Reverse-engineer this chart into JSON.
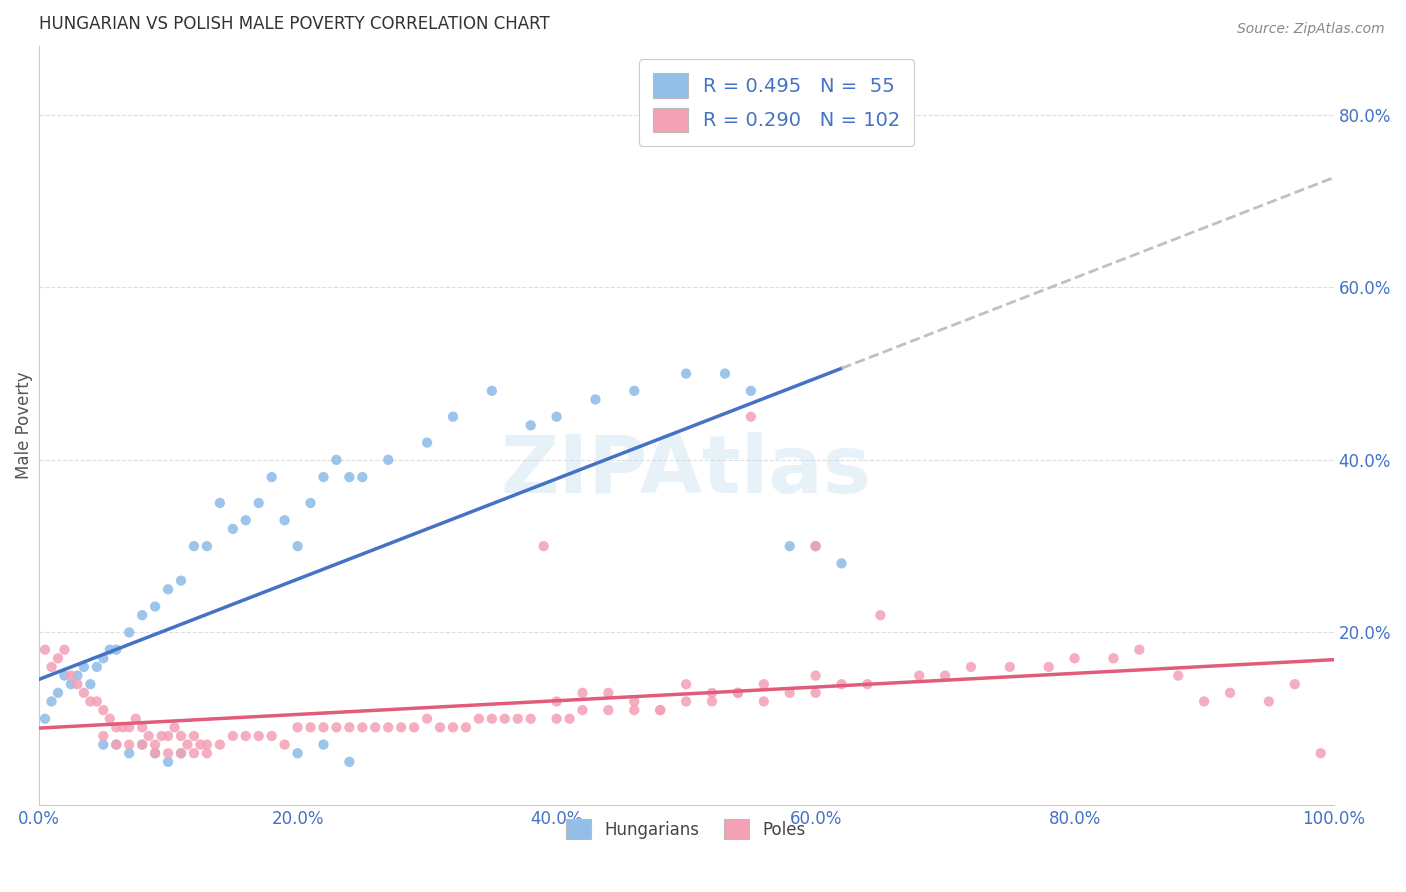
{
  "title": "HUNGARIAN VS POLISH MALE POVERTY CORRELATION CHART",
  "source": "Source: ZipAtlas.com",
  "ylabel": "Male Poverty",
  "xlim": [
    0,
    1.0
  ],
  "ylim": [
    0.0,
    0.88
  ],
  "x_tick_labels": [
    "0.0%",
    "20.0%",
    "40.0%",
    "60.0%",
    "80.0%",
    "100.0%"
  ],
  "y_tick_labels_right": [
    "",
    "20.0%",
    "40.0%",
    "60.0%",
    "80.0%"
  ],
  "hungarian_color": "#92BEE8",
  "polish_color": "#F4A0B5",
  "trendline_hungarian_color": "#4472C4",
  "trendline_polish_color": "#E05C7A",
  "trendline_extension_color": "#C0C0C0",
  "legend_label_hungarian": "Hungarians",
  "legend_label_polish": "Poles",
  "R_hungarian": 0.495,
  "N_hungarian": 55,
  "R_polish": 0.29,
  "N_polish": 102,
  "watermark": "ZIPAtlas",
  "background_color": "#FFFFFF",
  "grid_color": "#DDDDDD",
  "hungarian_x": [
    0.005,
    0.01,
    0.015,
    0.02,
    0.025,
    0.03,
    0.035,
    0.04,
    0.045,
    0.05,
    0.055,
    0.06,
    0.07,
    0.08,
    0.09,
    0.1,
    0.11,
    0.12,
    0.13,
    0.14,
    0.15,
    0.16,
    0.17,
    0.18,
    0.19,
    0.2,
    0.21,
    0.22,
    0.23,
    0.24,
    0.25,
    0.27,
    0.3,
    0.32,
    0.35,
    0.38,
    0.4,
    0.43,
    0.46,
    0.5,
    0.53,
    0.55,
    0.58,
    0.6,
    0.62,
    0.2,
    0.22,
    0.24,
    0.05,
    0.06,
    0.07,
    0.08,
    0.09,
    0.1,
    0.11
  ],
  "hungarian_y": [
    0.1,
    0.12,
    0.13,
    0.15,
    0.14,
    0.15,
    0.16,
    0.14,
    0.16,
    0.17,
    0.18,
    0.18,
    0.2,
    0.22,
    0.23,
    0.25,
    0.26,
    0.3,
    0.3,
    0.35,
    0.32,
    0.33,
    0.35,
    0.38,
    0.33,
    0.3,
    0.35,
    0.38,
    0.4,
    0.38,
    0.38,
    0.4,
    0.42,
    0.45,
    0.48,
    0.44,
    0.45,
    0.47,
    0.48,
    0.5,
    0.5,
    0.48,
    0.3,
    0.3,
    0.28,
    0.06,
    0.07,
    0.05,
    0.07,
    0.07,
    0.06,
    0.07,
    0.06,
    0.05,
    0.06
  ],
  "polish_x": [
    0.005,
    0.01,
    0.015,
    0.02,
    0.025,
    0.03,
    0.035,
    0.04,
    0.045,
    0.05,
    0.055,
    0.06,
    0.065,
    0.07,
    0.075,
    0.08,
    0.085,
    0.09,
    0.095,
    0.1,
    0.105,
    0.11,
    0.115,
    0.12,
    0.125,
    0.13,
    0.14,
    0.15,
    0.16,
    0.17,
    0.18,
    0.19,
    0.2,
    0.21,
    0.22,
    0.23,
    0.24,
    0.25,
    0.26,
    0.27,
    0.28,
    0.29,
    0.3,
    0.31,
    0.32,
    0.33,
    0.34,
    0.35,
    0.36,
    0.37,
    0.38,
    0.39,
    0.4,
    0.41,
    0.42,
    0.44,
    0.46,
    0.48,
    0.5,
    0.52,
    0.54,
    0.56,
    0.58,
    0.6,
    0.62,
    0.64,
    0.68,
    0.7,
    0.72,
    0.75,
    0.78,
    0.8,
    0.83,
    0.85,
    0.88,
    0.9,
    0.92,
    0.95,
    0.97,
    0.99,
    0.4,
    0.42,
    0.44,
    0.46,
    0.48,
    0.5,
    0.52,
    0.54,
    0.56,
    0.6,
    0.05,
    0.06,
    0.07,
    0.08,
    0.09,
    0.1,
    0.11,
    0.12,
    0.13,
    0.55,
    0.6,
    0.65
  ],
  "polish_y": [
    0.18,
    0.16,
    0.17,
    0.18,
    0.15,
    0.14,
    0.13,
    0.12,
    0.12,
    0.11,
    0.1,
    0.09,
    0.09,
    0.09,
    0.1,
    0.09,
    0.08,
    0.07,
    0.08,
    0.08,
    0.09,
    0.08,
    0.07,
    0.08,
    0.07,
    0.07,
    0.07,
    0.08,
    0.08,
    0.08,
    0.08,
    0.07,
    0.09,
    0.09,
    0.09,
    0.09,
    0.09,
    0.09,
    0.09,
    0.09,
    0.09,
    0.09,
    0.1,
    0.09,
    0.09,
    0.09,
    0.1,
    0.1,
    0.1,
    0.1,
    0.1,
    0.3,
    0.1,
    0.1,
    0.11,
    0.11,
    0.11,
    0.11,
    0.12,
    0.12,
    0.13,
    0.12,
    0.13,
    0.13,
    0.14,
    0.14,
    0.15,
    0.15,
    0.16,
    0.16,
    0.16,
    0.17,
    0.17,
    0.18,
    0.15,
    0.12,
    0.13,
    0.12,
    0.14,
    0.06,
    0.12,
    0.13,
    0.13,
    0.12,
    0.11,
    0.14,
    0.13,
    0.13,
    0.14,
    0.15,
    0.08,
    0.07,
    0.07,
    0.07,
    0.06,
    0.06,
    0.06,
    0.06,
    0.06,
    0.45,
    0.3,
    0.22
  ]
}
